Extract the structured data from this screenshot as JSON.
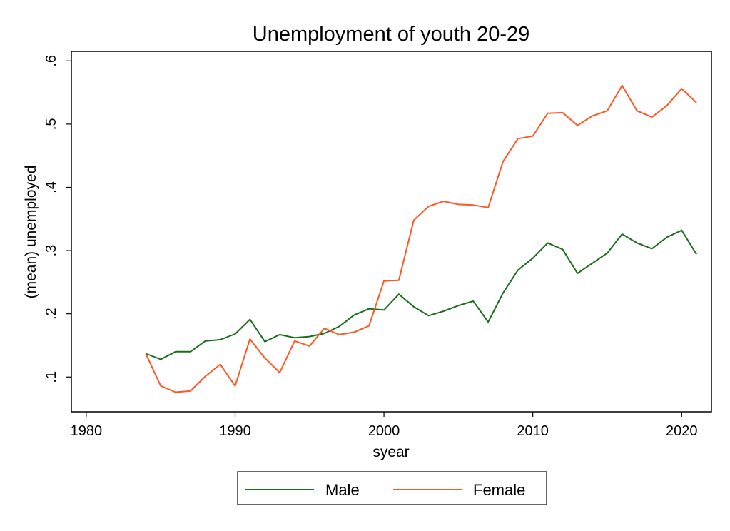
{
  "chart_data": {
    "type": "line",
    "title": "Unemployment of youth 20-29",
    "xlabel": "syear",
    "ylabel": "(mean) unemployed",
    "xlim": [
      1979,
      2022
    ],
    "ylim": [
      0.045,
      0.615
    ],
    "xticks": [
      1980,
      1990,
      2000,
      2010,
      2020
    ],
    "xtick_labels": [
      "1980",
      "1990",
      "2000",
      "2010",
      "2020"
    ],
    "yticks": [
      0.1,
      0.2,
      0.3,
      0.4,
      0.5,
      0.6
    ],
    "ytick_labels": [
      ".1",
      ".2",
      ".3",
      ".4",
      ".5",
      ".6"
    ],
    "grid": false,
    "legend_position": "bottom",
    "x": [
      1984,
      1985,
      1986,
      1987,
      1988,
      1989,
      1990,
      1991,
      1992,
      1993,
      1994,
      1995,
      1996,
      1997,
      1998,
      1999,
      2000,
      2001,
      2002,
      2003,
      2004,
      2005,
      2006,
      2007,
      2008,
      2009,
      2010,
      2011,
      2012,
      2013,
      2014,
      2015,
      2016,
      2017,
      2018,
      2019,
      2020,
      2021
    ],
    "series": [
      {
        "name": "Male",
        "color": "#1a6e1a",
        "values": [
          0.137,
          0.128,
          0.14,
          0.14,
          0.157,
          0.159,
          0.168,
          0.191,
          0.156,
          0.167,
          0.162,
          0.164,
          0.169,
          0.18,
          0.198,
          0.208,
          0.206,
          0.231,
          0.211,
          0.197,
          0.204,
          0.213,
          0.22,
          0.187,
          0.233,
          0.269,
          0.288,
          0.312,
          0.302,
          0.264,
          0.28,
          0.296,
          0.326,
          0.312,
          0.303,
          0.321,
          0.332,
          0.294
        ]
      },
      {
        "name": "Female",
        "color": "#ff5722",
        "values": [
          0.137,
          0.086,
          0.076,
          0.078,
          0.101,
          0.12,
          0.086,
          0.16,
          0.13,
          0.107,
          0.157,
          0.149,
          0.177,
          0.167,
          0.171,
          0.181,
          0.252,
          0.253,
          0.348,
          0.37,
          0.378,
          0.373,
          0.372,
          0.368,
          0.441,
          0.477,
          0.481,
          0.517,
          0.518,
          0.498,
          0.513,
          0.521,
          0.561,
          0.521,
          0.511,
          0.529,
          0.556,
          0.534
        ]
      }
    ]
  }
}
